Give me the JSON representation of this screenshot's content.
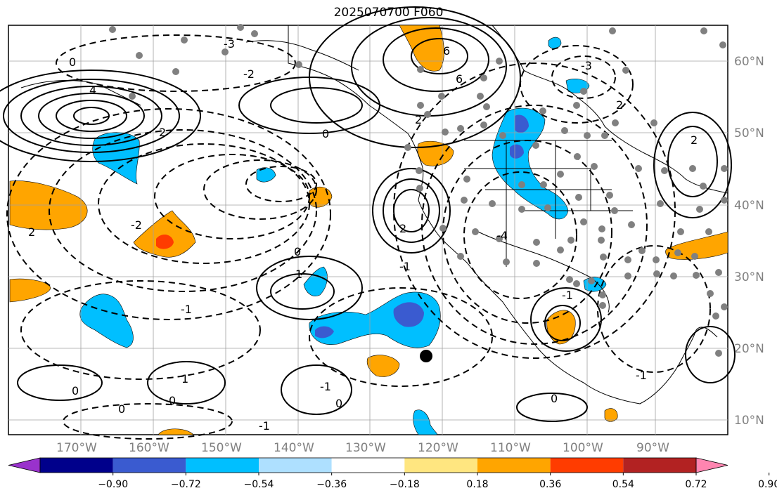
{
  "title": "2025070700 F060",
  "longitude_labels": [
    "170°W",
    "160°W",
    "150°W",
    "140°W",
    "130°W",
    "120°W",
    "110°W",
    "100°W",
    "90°W"
  ],
  "latitude_labels": [
    "60°N",
    "50°N",
    "40°N",
    "30°N",
    "20°N",
    "10°N"
  ],
  "contour_labels": [
    "0",
    "2",
    "4",
    "6",
    "2",
    "0",
    "-2",
    "-3",
    "-4",
    "6",
    "2",
    "0",
    "1",
    "-1",
    "0",
    "-2",
    "2",
    "-3",
    "0",
    "-1",
    "0",
    "1",
    "2",
    "-1",
    "0",
    "-1",
    "0",
    "-1",
    "2",
    "-1"
  ],
  "colorbar": {
    "tick_labels": [
      "−0.90",
      "−0.72",
      "−0.54",
      "−0.36",
      "−0.18",
      "0.18",
      "0.36",
      "0.54",
      "0.72",
      "0.90"
    ],
    "colors": [
      "#9932cc",
      "#00008b",
      "#3a5bd0",
      "#00bfff",
      "#aee0ff",
      "#ffffff",
      "#ffe680",
      "#ffa500",
      "#ff3c00",
      "#b22222",
      "#ff85b0"
    ]
  },
  "colors": {
    "coast": "#000000",
    "grid": "#a0a0a0",
    "station_dot": "#808080",
    "marker": "#000000"
  }
}
